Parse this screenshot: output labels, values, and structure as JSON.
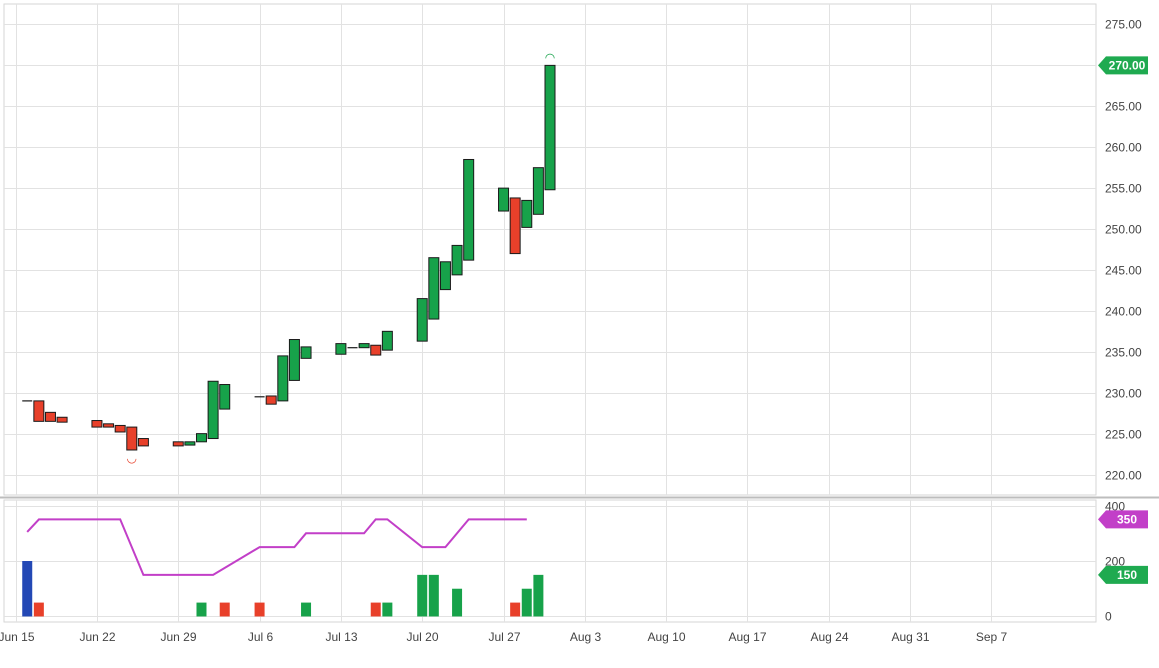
{
  "chart_data": [
    {
      "type": "candlestick",
      "ylim": [
        217.5,
        277.5
      ],
      "y_ticks": [
        "220.00",
        "225.00",
        "230.00",
        "235.00",
        "240.00",
        "245.00",
        "250.00",
        "255.00",
        "260.00",
        "265.00",
        "270.00",
        "275.00"
      ],
      "last_price_label": "270.00",
      "last_price": 270,
      "grid": true,
      "colors": {
        "up": "#17a24a",
        "down": "#e8402a",
        "outline": "#1a1a1a",
        "price_badge": "#1faa50"
      },
      "candles": [
        {
          "date": "2020-06-16",
          "open": 229.0,
          "close": 229.0
        },
        {
          "date": "2020-06-17",
          "open": 229.0,
          "close": 226.5
        },
        {
          "date": "2020-06-18",
          "open": 227.6,
          "close": 226.5
        },
        {
          "date": "2020-06-19",
          "open": 227.0,
          "close": 226.4
        },
        {
          "date": "2020-06-22",
          "open": 226.6,
          "close": 225.8
        },
        {
          "date": "2020-06-23",
          "open": 226.2,
          "close": 225.8
        },
        {
          "date": "2020-06-24",
          "open": 226.0,
          "close": 225.2
        },
        {
          "date": "2020-06-25",
          "open": 225.8,
          "close": 223.0
        },
        {
          "date": "2020-06-26",
          "open": 224.4,
          "close": 223.5
        },
        {
          "date": "2020-06-29",
          "open": 224.0,
          "close": 223.5
        },
        {
          "date": "2020-06-30",
          "open": 223.6,
          "close": 224.0
        },
        {
          "date": "2020-07-01",
          "open": 224.0,
          "close": 225.0
        },
        {
          "date": "2020-07-02",
          "open": 224.4,
          "close": 231.4
        },
        {
          "date": "2020-07-03",
          "open": 228.0,
          "close": 231.0
        },
        {
          "date": "2020-07-06",
          "open": 229.5,
          "close": 229.5
        },
        {
          "date": "2020-07-07",
          "open": 229.6,
          "close": 228.6
        },
        {
          "date": "2020-07-08",
          "open": 229.0,
          "close": 234.5
        },
        {
          "date": "2020-07-09",
          "open": 231.5,
          "close": 236.5
        },
        {
          "date": "2020-07-10",
          "open": 234.2,
          "close": 235.6
        },
        {
          "date": "2020-07-13",
          "open": 234.7,
          "close": 236.0
        },
        {
          "date": "2020-07-14",
          "open": 235.5,
          "close": 235.5
        },
        {
          "date": "2020-07-15",
          "open": 235.5,
          "close": 236.0
        },
        {
          "date": "2020-07-16",
          "open": 235.8,
          "close": 234.6
        },
        {
          "date": "2020-07-17",
          "open": 235.2,
          "close": 237.5
        },
        {
          "date": "2020-07-20",
          "open": 236.3,
          "close": 241.5
        },
        {
          "date": "2020-07-21",
          "open": 239.0,
          "close": 246.5
        },
        {
          "date": "2020-07-22",
          "open": 242.6,
          "close": 246.0
        },
        {
          "date": "2020-07-23",
          "open": 244.4,
          "close": 248.0
        },
        {
          "date": "2020-07-24",
          "open": 246.2,
          "close": 258.5
        },
        {
          "date": "2020-07-27",
          "open": 252.2,
          "close": 255.0
        },
        {
          "date": "2020-07-28",
          "open": 253.8,
          "close": 247.0
        },
        {
          "date": "2020-07-29",
          "open": 250.2,
          "close": 253.5
        },
        {
          "date": "2020-07-30",
          "open": 251.8,
          "close": 257.5
        },
        {
          "date": "2020-07-31",
          "open": 254.8,
          "close": 270.0
        }
      ],
      "markers": [
        {
          "date": "2020-06-25",
          "position": "below",
          "symbol": "◡"
        },
        {
          "date": "2020-07-31",
          "position": "above",
          "symbol": "◠"
        }
      ]
    },
    {
      "type": "bar+line",
      "ylim": [
        -20,
        420
      ],
      "y_ticks": [
        "0",
        "200",
        "400"
      ],
      "line_label": "350",
      "bar_label": "150",
      "colors": {
        "line": "#c23fc8",
        "up": "#17a24a",
        "down": "#e8402a",
        "extreme": "#2348b5"
      },
      "line": [
        {
          "date": "2020-06-16",
          "value": 305
        },
        {
          "date": "2020-06-17",
          "value": 350
        },
        {
          "date": "2020-06-24",
          "value": 350
        },
        {
          "date": "2020-06-26",
          "value": 150
        },
        {
          "date": "2020-07-02",
          "value": 150
        },
        {
          "date": "2020-07-06",
          "value": 250
        },
        {
          "date": "2020-07-09",
          "value": 250
        },
        {
          "date": "2020-07-10",
          "value": 300
        },
        {
          "date": "2020-07-15",
          "value": 300
        },
        {
          "date": "2020-07-16",
          "value": 350
        },
        {
          "date": "2020-07-17",
          "value": 350
        },
        {
          "date": "2020-07-20",
          "value": 250
        },
        {
          "date": "2020-07-22",
          "value": 250
        },
        {
          "date": "2020-07-24",
          "value": 350
        },
        {
          "date": "2020-07-29",
          "value": 350
        }
      ],
      "bars": [
        {
          "date": "2020-06-16",
          "value": 200,
          "kind": "extreme"
        },
        {
          "date": "2020-06-17",
          "value": 50,
          "kind": "down"
        },
        {
          "date": "2020-07-01",
          "value": 50,
          "kind": "up"
        },
        {
          "date": "2020-07-03",
          "value": 50,
          "kind": "down"
        },
        {
          "date": "2020-07-06",
          "value": 50,
          "kind": "down"
        },
        {
          "date": "2020-07-10",
          "value": 50,
          "kind": "up"
        },
        {
          "date": "2020-07-16",
          "value": 50,
          "kind": "down"
        },
        {
          "date": "2020-07-17",
          "value": 50,
          "kind": "up"
        },
        {
          "date": "2020-07-20",
          "value": 150,
          "kind": "up"
        },
        {
          "date": "2020-07-21",
          "value": 150,
          "kind": "up"
        },
        {
          "date": "2020-07-23",
          "value": 100,
          "kind": "up"
        },
        {
          "date": "2020-07-28",
          "value": 50,
          "kind": "down"
        },
        {
          "date": "2020-07-29",
          "value": 100,
          "kind": "up"
        },
        {
          "date": "2020-07-30",
          "value": 150,
          "kind": "up"
        }
      ]
    }
  ],
  "x_axis": {
    "type": "date",
    "range": [
      "2020-06-14",
      "2020-09-16"
    ],
    "ticks": [
      {
        "date": "2020-06-15",
        "label": "Jun 15"
      },
      {
        "date": "2020-06-22",
        "label": "Jun 22"
      },
      {
        "date": "2020-06-29",
        "label": "Jun 29"
      },
      {
        "date": "2020-07-06",
        "label": "Jul 6"
      },
      {
        "date": "2020-07-13",
        "label": "Jul 13"
      },
      {
        "date": "2020-07-20",
        "label": "Jul 20"
      },
      {
        "date": "2020-07-27",
        "label": "Jul 27"
      },
      {
        "date": "2020-08-03",
        "label": "Aug 3"
      },
      {
        "date": "2020-08-10",
        "label": "Aug 10"
      },
      {
        "date": "2020-08-17",
        "label": "Aug 17"
      },
      {
        "date": "2020-08-24",
        "label": "Aug 24"
      },
      {
        "date": "2020-08-31",
        "label": "Aug 31"
      },
      {
        "date": "2020-09-07",
        "label": "Sep 7"
      }
    ]
  }
}
